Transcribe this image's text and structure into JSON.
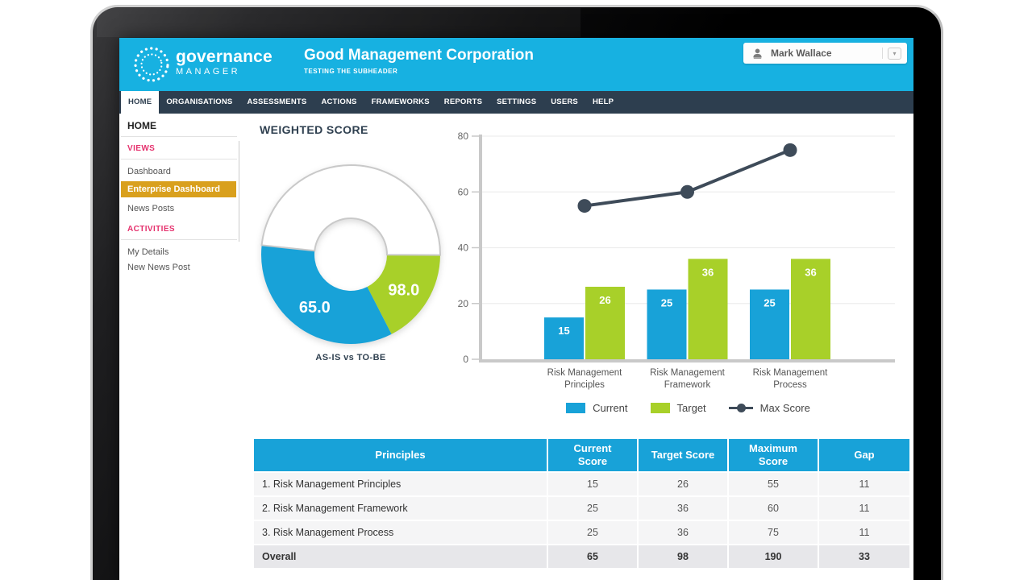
{
  "header": {
    "logo_title": "governance",
    "logo_subtitle": "MANAGER",
    "org_title": "Good Management Corporation",
    "org_subtitle": "TESTING THE SUBHEADER",
    "user_name": "Mark Wallace"
  },
  "nav": {
    "items": [
      {
        "label": "HOME",
        "active": true
      },
      {
        "label": "ORGANISATIONS",
        "active": false
      },
      {
        "label": "ASSESSMENTS",
        "active": false
      },
      {
        "label": "ACTIONS",
        "active": false
      },
      {
        "label": "FRAMEWORKS",
        "active": false
      },
      {
        "label": "REPORTS",
        "active": false
      },
      {
        "label": "SETTINGS",
        "active": false
      },
      {
        "label": "USERS",
        "active": false
      },
      {
        "label": "HELP",
        "active": false
      }
    ]
  },
  "sidebar": {
    "title": "HOME",
    "sections": [
      {
        "label": "VIEWS",
        "items": [
          {
            "label": "Dashboard",
            "active": false
          },
          {
            "label": "Enterprise Dashboard",
            "active": true
          },
          {
            "label": "News Posts",
            "active": false
          }
        ]
      },
      {
        "label": "ACTIVITIES",
        "items": [
          {
            "label": "My Details",
            "active": false
          },
          {
            "label": "New News Post",
            "active": false
          }
        ]
      }
    ]
  },
  "main": {
    "heading": "WEIGHTED SCORE"
  },
  "chart_data": [
    {
      "type": "pie",
      "subtype": "donut-gauge",
      "title": "AS-IS vs TO-BE",
      "max": 190,
      "segments": [
        {
          "name": "AS-IS (Current)",
          "value": 65.0,
          "label": "65.0",
          "color": "#18a2d8"
        },
        {
          "name": "TO-BE (Target)",
          "value": 98.0,
          "label": "98.0",
          "color": "#a8d029"
        }
      ],
      "empty_color": "#ffffff",
      "ring_border_color": "#c9c9c9",
      "note": "target drawn as increment above current; remainder up to max is empty"
    },
    {
      "type": "bar+line",
      "categories": [
        "Risk Management Principles",
        "Risk Management Framework",
        "Risk Management Process"
      ],
      "series": [
        {
          "name": "Current",
          "type": "bar",
          "color": "#18a2d8",
          "values": [
            15,
            25,
            25
          ]
        },
        {
          "name": "Target",
          "type": "bar",
          "color": "#a8d029",
          "values": [
            26,
            36,
            36
          ]
        },
        {
          "name": "Max Score",
          "type": "line",
          "color": "#3e4b59",
          "values": [
            55,
            60,
            75
          ]
        }
      ],
      "ylim": [
        0,
        80
      ],
      "yticks": [
        0,
        20,
        40,
        60,
        80
      ],
      "grid": true,
      "legend_position": "bottom"
    }
  ],
  "table": {
    "columns": [
      "Principles",
      "Current Score",
      "Target Score",
      "Maximum Score",
      "Gap"
    ],
    "rows": [
      [
        "1. Risk Management Principles",
        "15",
        "26",
        "55",
        "11"
      ],
      [
        "2. Risk Management Framework",
        "25",
        "36",
        "60",
        "11"
      ],
      [
        "3. Risk Management Process",
        "25",
        "36",
        "75",
        "11"
      ]
    ],
    "overall": [
      "Overall",
      "65",
      "98",
      "190",
      "33"
    ]
  },
  "colors": {
    "header_cyan": "#17b1e1",
    "nav_dark": "#2d3e4f",
    "accent_pink": "#e5326e",
    "highlight_gold": "#d9a01d",
    "bar_blue": "#18a2d8",
    "bar_green": "#a8d029",
    "line_dark": "#3e4b59",
    "table_header_blue": "#18a2d8"
  }
}
